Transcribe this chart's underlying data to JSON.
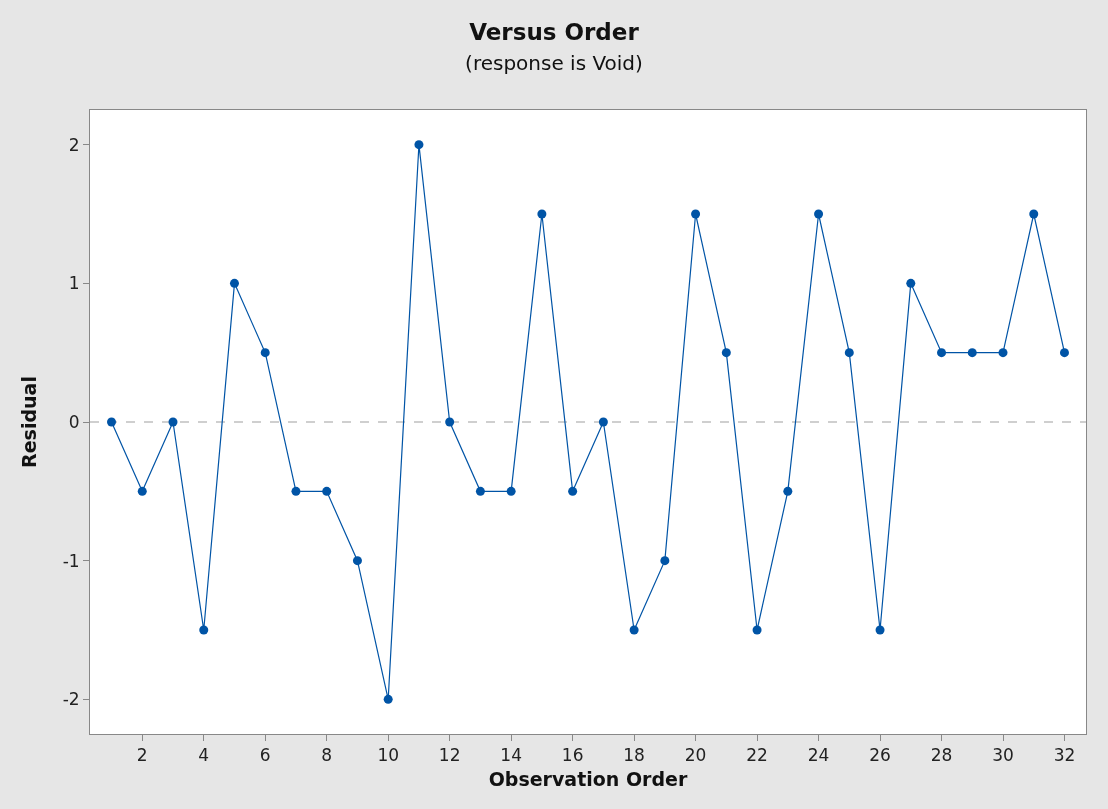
{
  "chart_data": {
    "type": "line",
    "title": "Versus Order",
    "subtitle": "(response is Void)",
    "xlabel": "Observation Order",
    "ylabel": "Residual",
    "x": [
      1,
      2,
      3,
      4,
      5,
      6,
      7,
      8,
      9,
      10,
      11,
      12,
      13,
      14,
      15,
      16,
      17,
      18,
      19,
      20,
      21,
      22,
      23,
      24,
      25,
      26,
      27,
      28,
      29,
      30,
      31,
      32
    ],
    "series": [
      {
        "color": "#0054a6",
        "values": [
          0,
          -0.5,
          0,
          -1.5,
          1,
          0.5,
          -0.5,
          -0.5,
          -1,
          -2,
          2,
          0,
          -0.5,
          -0.5,
          1.5,
          -0.5,
          0,
          -1.5,
          -1,
          1.5,
          0.5,
          -1.5,
          -0.5,
          1.5,
          0.5,
          -1.5,
          1,
          0.5,
          0.5,
          0.5,
          1.5,
          0.5
        ]
      }
    ],
    "xlim": [
      0.3,
      32.7
    ],
    "xticks": [
      2,
      4,
      6,
      8,
      10,
      12,
      14,
      16,
      18,
      20,
      22,
      24,
      26,
      28,
      30,
      32
    ],
    "ylim": [
      -2.25,
      2.25
    ],
    "yticks": [
      {
        "value": -2,
        "label": "-2"
      },
      {
        "value": -1,
        "label": "-1"
      },
      0,
      1,
      2
    ],
    "ref_lines": [
      {
        "axis": "y",
        "value": 0,
        "color": "#a0a0a0",
        "line_style": "dashed"
      }
    ],
    "marker": "circle",
    "line_style": "solid",
    "grid": false
  }
}
